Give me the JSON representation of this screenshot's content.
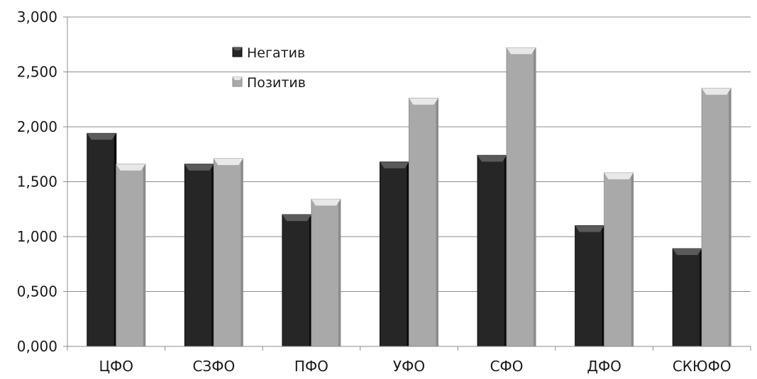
{
  "chart_data": {
    "type": "bar",
    "title": "",
    "xlabel": "",
    "ylabel": "",
    "categories": [
      "ЦФО",
      "СЗФО",
      "ПФО",
      "УФО",
      "СФО",
      "ДФО",
      "СКЮФО"
    ],
    "series": [
      {
        "name": "Негатив",
        "values": [
          1.94,
          1.66,
          1.2,
          1.68,
          1.74,
          1.1,
          0.89
        ],
        "color": "#262626",
        "top_color": "#5a5a5a"
      },
      {
        "name": "Позитив",
        "values": [
          1.66,
          1.71,
          1.34,
          2.26,
          2.72,
          1.58,
          2.35
        ],
        "color": "#a9a9a9",
        "top_color": "#e8e8e8"
      }
    ],
    "ylim": [
      0,
      3
    ],
    "yticks": [
      0,
      0.5,
      1,
      1.5,
      2,
      2.5,
      3
    ],
    "ytick_labels": [
      "0,000",
      "0,500",
      "1,000",
      "1,500",
      "2,000",
      "2,500",
      "3,000"
    ],
    "grid": true,
    "legend_position": "top-left-inside"
  }
}
